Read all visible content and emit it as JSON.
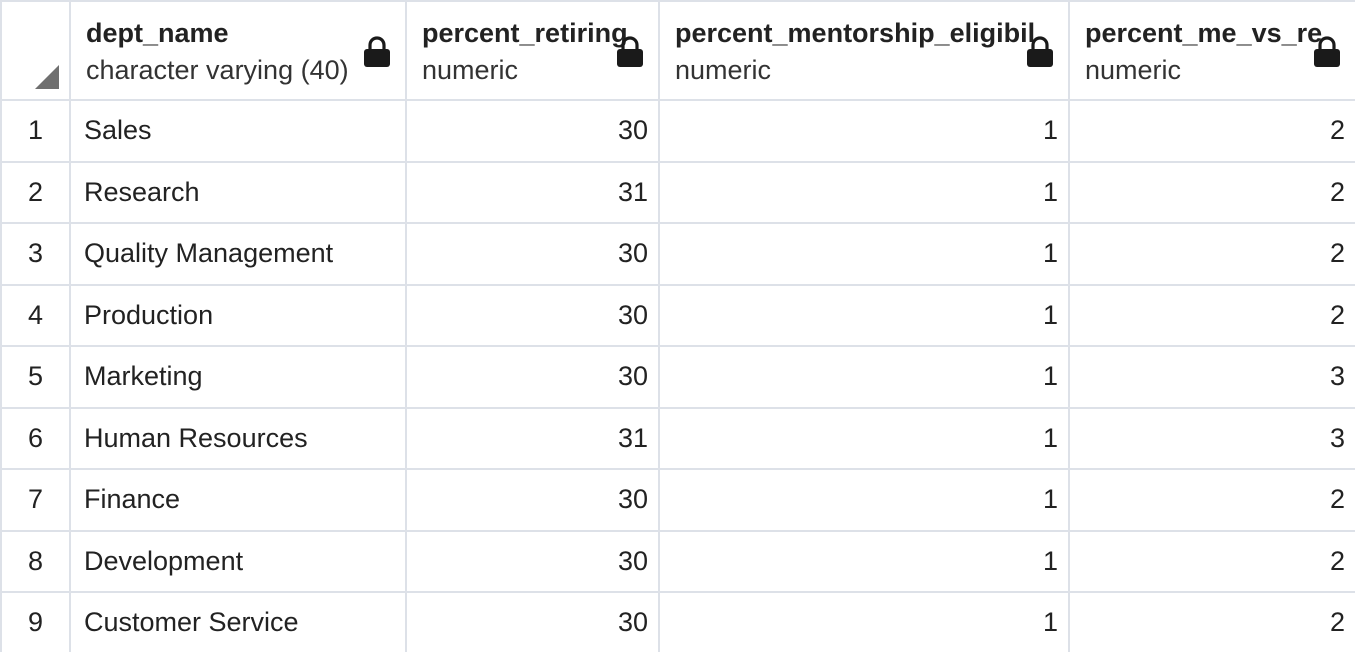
{
  "columns": [
    {
      "name": "dept_name",
      "type": "character varying (40)"
    },
    {
      "name": "percent_retiring",
      "type": "numeric"
    },
    {
      "name": "percent_mentorship_eligibil",
      "type": "numeric"
    },
    {
      "name": "percent_me_vs_re",
      "type": "numeric"
    }
  ],
  "rows": [
    {
      "num": "1",
      "dept_name": "Sales",
      "percent_retiring": "30",
      "percent_mentorship_eligible": "1",
      "percent_me_vs_re": "2"
    },
    {
      "num": "2",
      "dept_name": "Research",
      "percent_retiring": "31",
      "percent_mentorship_eligible": "1",
      "percent_me_vs_re": "2"
    },
    {
      "num": "3",
      "dept_name": "Quality Management",
      "percent_retiring": "30",
      "percent_mentorship_eligible": "1",
      "percent_me_vs_re": "2"
    },
    {
      "num": "4",
      "dept_name": "Production",
      "percent_retiring": "30",
      "percent_mentorship_eligible": "1",
      "percent_me_vs_re": "2"
    },
    {
      "num": "5",
      "dept_name": "Marketing",
      "percent_retiring": "30",
      "percent_mentorship_eligible": "1",
      "percent_me_vs_re": "3"
    },
    {
      "num": "6",
      "dept_name": "Human Resources",
      "percent_retiring": "31",
      "percent_mentorship_eligible": "1",
      "percent_me_vs_re": "3"
    },
    {
      "num": "7",
      "dept_name": "Finance",
      "percent_retiring": "30",
      "percent_mentorship_eligible": "1",
      "percent_me_vs_re": "2"
    },
    {
      "num": "8",
      "dept_name": "Development",
      "percent_retiring": "30",
      "percent_mentorship_eligible": "1",
      "percent_me_vs_re": "2"
    },
    {
      "num": "9",
      "dept_name": "Customer Service",
      "percent_retiring": "30",
      "percent_mentorship_eligible": "1",
      "percent_me_vs_re": "2"
    }
  ],
  "icons": {
    "lock": "lock-icon",
    "corner": "select-all-triangle-icon"
  },
  "colors": {
    "grid_line": "#dde1e8",
    "lock": "#1a1a1a",
    "corner_triangle": "#6f6f6f"
  }
}
